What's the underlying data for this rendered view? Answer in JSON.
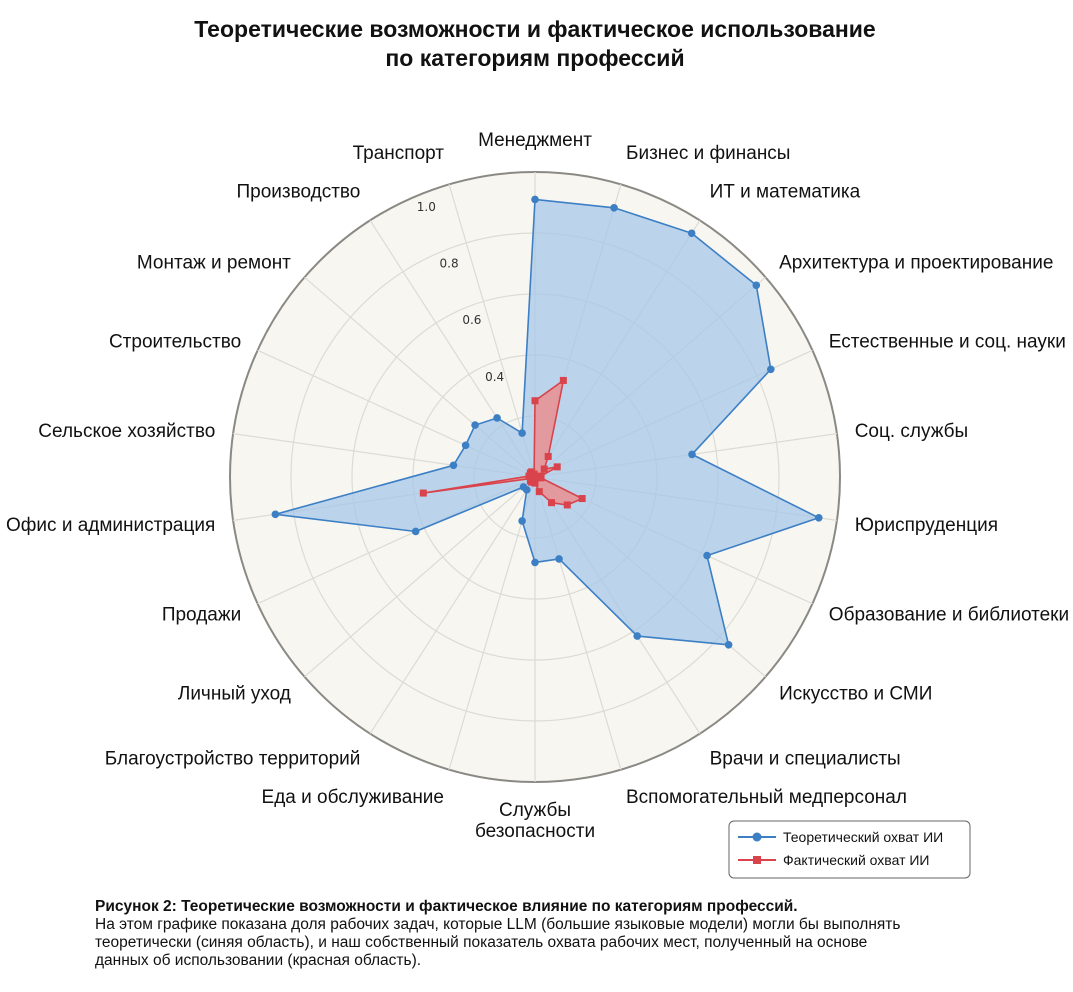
{
  "chart_data": {
    "type": "radar",
    "title": [
      "Теоретические возможности и фактическое использование",
      "по категориям профессий"
    ],
    "categories": [
      "Менеджмент",
      "Бизнес и финансы",
      "ИТ и математика",
      "Архитектура и проектирование",
      "Естественные и соц. науки",
      "Соц. службы",
      "Юриспруденция",
      "Образование и библиотеки",
      "Искусство и СМИ",
      "Врачи и специалисты",
      "Вспомогательный медперсонал",
      "Службы безопасности",
      "Еда и обслуживание",
      "Благоустройство территорий",
      "Личный уход",
      "Продажи",
      "Офис и администрация",
      "Сельское хозяйство",
      "Строительство",
      "Монтаж и ремонт",
      "Производство",
      "Транспорт"
    ],
    "rlim": [
      0,
      1.0
    ],
    "rticks": [
      "0.4",
      "0.6",
      "0.8",
      "1.0"
    ],
    "grid": true,
    "series": [
      {
        "name": "Теоретический охват ИИ",
        "color": "#3d7fc4",
        "fill": "#a7c8e8",
        "marker": "circle",
        "values": [
          0.91,
          0.92,
          0.95,
          0.96,
          0.85,
          0.52,
          0.94,
          0.62,
          0.84,
          0.62,
          0.28,
          0.28,
          0.15,
          0.05,
          0.05,
          0.43,
          0.86,
          0.27,
          0.25,
          0.26,
          0.23,
          0.15
        ]
      },
      {
        "name": "Фактический охват ИИ",
        "color": "#d9434b",
        "fill": "#ec8b8c",
        "marker": "square",
        "values": [
          0.25,
          0.33,
          0.08,
          0.04,
          0.08,
          0.02,
          0.02,
          0.17,
          0.14,
          0.1,
          0.05,
          0.02,
          0.01,
          0.02,
          0.02,
          0.01,
          0.37,
          0.02,
          0.01,
          0.02,
          0.02,
          0.01
        ]
      }
    ],
    "legend": "bottom-right"
  },
  "caption": {
    "heading": "Рисунок 2: Теоретические возможности и фактическое влияние по категориям профессий.",
    "lines": [
      "На этом графике показана доля рабочих задач, которые LLM (большие языковые модели) могли бы выполнять",
      "теоретически (синяя область), и наш собственный показатель охвата рабочих мест, полученный на основе",
      "данных об использовании (красная область)."
    ]
  }
}
